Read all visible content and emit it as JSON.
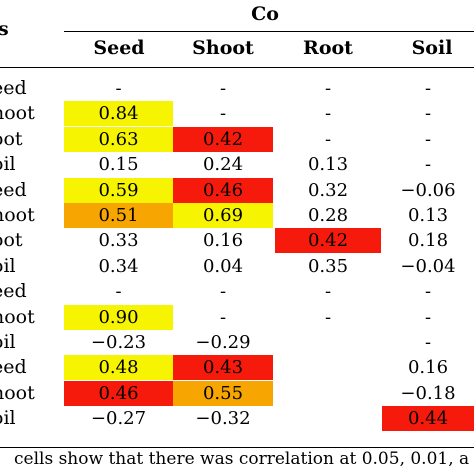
{
  "group_label_fragment": "s",
  "group_header": "Co",
  "columns": [
    "Seed",
    "Shoot",
    "Root",
    "Soil"
  ],
  "colors": {
    "yellow": "#f6f400",
    "orange": "#f7a500",
    "red": "#f51a0c"
  },
  "rows": [
    {
      "label": "eed",
      "cells": [
        {
          "v": "-",
          "c": ""
        },
        {
          "v": "-",
          "c": ""
        },
        {
          "v": "-",
          "c": ""
        },
        {
          "v": "-",
          "c": ""
        }
      ]
    },
    {
      "label": "hoot",
      "cells": [
        {
          "v": "0.84",
          "c": "yellow"
        },
        {
          "v": "-",
          "c": ""
        },
        {
          "v": "-",
          "c": ""
        },
        {
          "v": "-",
          "c": ""
        }
      ]
    },
    {
      "label": "oot",
      "cells": [
        {
          "v": "0.63",
          "c": "yellow"
        },
        {
          "v": "0.42",
          "c": "red"
        },
        {
          "v": "-",
          "c": ""
        },
        {
          "v": "-",
          "c": ""
        }
      ]
    },
    {
      "label": "oil",
      "cells": [
        {
          "v": "0.15",
          "c": ""
        },
        {
          "v": "0.24",
          "c": ""
        },
        {
          "v": "0.13",
          "c": ""
        },
        {
          "v": "-",
          "c": ""
        }
      ]
    },
    {
      "label": "eed",
      "cells": [
        {
          "v": "0.59",
          "c": "yellow"
        },
        {
          "v": "0.46",
          "c": "red"
        },
        {
          "v": "0.32",
          "c": ""
        },
        {
          "v": "−0.06",
          "c": ""
        }
      ]
    },
    {
      "label": "hoot",
      "cells": [
        {
          "v": "0.51",
          "c": "orange"
        },
        {
          "v": "0.69",
          "c": "yellow"
        },
        {
          "v": "0.28",
          "c": ""
        },
        {
          "v": "0.13",
          "c": ""
        }
      ]
    },
    {
      "label": "oot",
      "cells": [
        {
          "v": "0.33",
          "c": ""
        },
        {
          "v": "0.16",
          "c": ""
        },
        {
          "v": "0.42",
          "c": "red"
        },
        {
          "v": "0.18",
          "c": ""
        }
      ]
    },
    {
      "label": "oil",
      "cells": [
        {
          "v": "0.34",
          "c": ""
        },
        {
          "v": "0.04",
          "c": ""
        },
        {
          "v": "0.35",
          "c": ""
        },
        {
          "v": "−0.04",
          "c": ""
        }
      ]
    },
    {
      "label": "eed",
      "cells": [
        {
          "v": "-",
          "c": ""
        },
        {
          "v": "-",
          "c": ""
        },
        {
          "v": "-",
          "c": ""
        },
        {
          "v": "-",
          "c": ""
        }
      ]
    },
    {
      "label": "hoot",
      "cells": [
        {
          "v": "0.90",
          "c": "yellow"
        },
        {
          "v": "-",
          "c": ""
        },
        {
          "v": "-",
          "c": ""
        },
        {
          "v": "-",
          "c": ""
        }
      ]
    },
    {
      "label": "oil",
      "cells": [
        {
          "v": "−0.23",
          "c": ""
        },
        {
          "v": "−0.29",
          "c": ""
        },
        {
          "v": "",
          "c": ""
        },
        {
          "v": "-",
          "c": ""
        }
      ]
    },
    {
      "label": "eed",
      "cells": [
        {
          "v": "0.48",
          "c": "yellow"
        },
        {
          "v": "0.43",
          "c": "red"
        },
        {
          "v": "",
          "c": ""
        },
        {
          "v": "0.16",
          "c": ""
        }
      ]
    },
    {
      "label": "hoot",
      "cells": [
        {
          "v": "0.46",
          "c": "red"
        },
        {
          "v": "0.55",
          "c": "orange"
        },
        {
          "v": "",
          "c": ""
        },
        {
          "v": "−0.18",
          "c": ""
        }
      ]
    },
    {
      "label": "oil",
      "cells": [
        {
          "v": "−0.27",
          "c": ""
        },
        {
          "v": "−0.32",
          "c": ""
        },
        {
          "v": "",
          "c": ""
        },
        {
          "v": "0.44",
          "c": "red"
        }
      ]
    }
  ],
  "footnote": "cells show that there was correlation at 0.05, 0.01, a"
}
